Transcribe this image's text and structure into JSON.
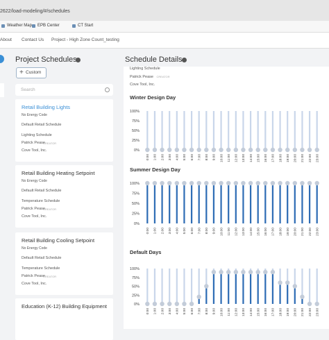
{
  "browser": {
    "url": "2622/load-modeling/#/schedules",
    "bookmarks": [
      "Weather Map",
      "EPB Center",
      "CT Start"
    ]
  },
  "nav": [
    "About",
    "Contact Us",
    "Project - High Zone Count_testing"
  ],
  "schedules": {
    "title": "Project Schedules",
    "button": "Custom",
    "search": "Search",
    "cards": [
      {
        "name": "Retail Building Lights",
        "code": "No Energy Code",
        "base": "Default Retail Schedule",
        "type": "Lighting Schedule",
        "author": "Patrick Pease",
        "role": "CREATOR",
        "company": "Cove Tool, Inc."
      },
      {
        "name": "Retail Building Heating Setpoint",
        "code": "No Energy Code",
        "base": "Default Retail Schedule",
        "type": "Temperature Schedule",
        "author": "Patrick Pease",
        "role": "CREATOR",
        "company": "Cove Tool, Inc."
      },
      {
        "name": "Retail Building Cooling Setpoint",
        "code": "No Energy Code",
        "base": "Default Retail Schedule",
        "type": "Temperature Schedule",
        "author": "Patrick Pease",
        "role": "CREATOR",
        "company": "Cove Tool, Inc."
      },
      {
        "name": "Education (K-12) Building Equipment"
      }
    ]
  },
  "details": {
    "title": "Schedule Details",
    "type": "Lighting Schedule",
    "author": "Patrick Pease",
    "role": "CREATOR",
    "company": "Cove Tool, Inc.",
    "charts": [
      {
        "type": "lollipop",
        "title": "Winter Design Day",
        "color": "#2f6db5",
        "track_color": "#c9d6ea",
        "dot_color": "#c3ccd9",
        "categories": [
          "0:00",
          "1:00",
          "2:00",
          "3:00",
          "4:00",
          "5:00",
          "6:00",
          "7:00",
          "8:00",
          "9:00",
          "10:00",
          "11:00",
          "12:00",
          "13:00",
          "14:00",
          "15:00",
          "16:00",
          "17:00",
          "18:00",
          "19:00",
          "20:00",
          "21:00",
          "22:00",
          "23:00"
        ],
        "values": [
          0,
          0,
          0,
          0,
          0,
          0,
          0,
          0,
          0,
          0,
          0,
          0,
          0,
          0,
          0,
          0,
          0,
          0,
          0,
          0,
          0,
          0,
          0,
          0
        ],
        "ylim": [
          0,
          100
        ],
        "yticks": [
          {
            "value": 0,
            "label": "0%"
          },
          {
            "value": 25,
            "label": "25%"
          },
          {
            "value": 50,
            "label": "50%"
          },
          {
            "value": 75,
            "label": "75%"
          },
          {
            "value": 100,
            "label": "100%"
          }
        ]
      },
      {
        "type": "lollipop",
        "title": "Summer Design Day",
        "color": "#2f6db5",
        "track_color": "#c9d6ea",
        "dot_color": "#c3ccd9",
        "categories": [
          "0:00",
          "1:00",
          "2:00",
          "3:00",
          "4:00",
          "5:00",
          "6:00",
          "7:00",
          "8:00",
          "9:00",
          "10:00",
          "11:00",
          "12:00",
          "13:00",
          "14:00",
          "15:00",
          "16:00",
          "17:00",
          "18:00",
          "19:00",
          "20:00",
          "21:00",
          "22:00",
          "23:00"
        ],
        "values": [
          100,
          100,
          100,
          100,
          100,
          100,
          100,
          100,
          100,
          100,
          100,
          100,
          100,
          100,
          100,
          100,
          100,
          100,
          100,
          100,
          100,
          100,
          100,
          100
        ],
        "ylim": [
          0,
          100
        ],
        "yticks": [
          {
            "value": 0,
            "label": "0%"
          },
          {
            "value": 25,
            "label": "25%"
          },
          {
            "value": 50,
            "label": "50%"
          },
          {
            "value": 75,
            "label": "75%"
          },
          {
            "value": 100,
            "label": "100%"
          }
        ]
      },
      {
        "type": "lollipop",
        "title": "Default Days",
        "color": "#2f6db5",
        "track_color": "#c9d6ea",
        "dot_color": "#c3ccd9",
        "categories": [
          "0:00",
          "1:00",
          "2:00",
          "3:00",
          "4:00",
          "5:00",
          "6:00",
          "7:00",
          "8:00",
          "9:00",
          "10:00",
          "11:00",
          "12:00",
          "13:00",
          "14:00",
          "15:00",
          "16:00",
          "17:00",
          "18:00",
          "19:00",
          "20:00",
          "21:00",
          "22:00",
          "23:00"
        ],
        "values": [
          0,
          0,
          0,
          0,
          0,
          0,
          0,
          20,
          50,
          90,
          90,
          90,
          90,
          90,
          90,
          90,
          90,
          90,
          60,
          60,
          50,
          20,
          0,
          0
        ],
        "ylim": [
          0,
          100
        ],
        "yticks": [
          {
            "value": 0,
            "label": "0%"
          },
          {
            "value": 25,
            "label": "25%"
          },
          {
            "value": 50,
            "label": "50%"
          },
          {
            "value": 75,
            "label": "75%"
          },
          {
            "value": 100,
            "label": "100%"
          }
        ]
      }
    ]
  }
}
